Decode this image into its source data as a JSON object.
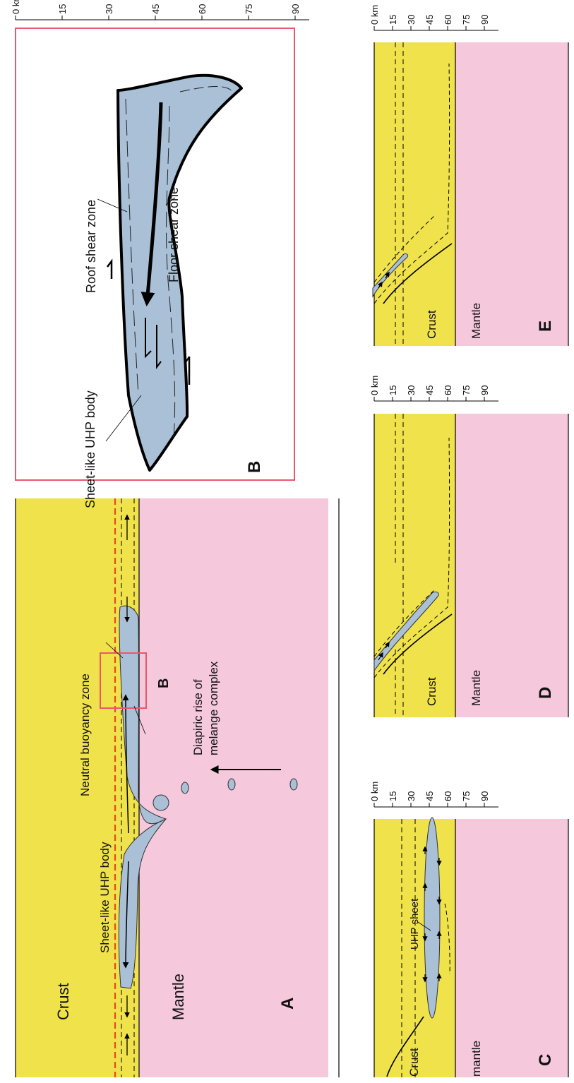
{
  "panel_a": {
    "letter": "A",
    "crust_label": "Crust",
    "mantle_label": "Mantle",
    "uhp_label": "Sheet-like UHP body",
    "buoyancy_label": "Neutral buoyancy zone",
    "diapir_label_1": "Diapiric rise of",
    "diapir_label_2": "melange complex",
    "inset_letter": "B"
  },
  "panel_b": {
    "letter": "B",
    "roof_label": "Roof shear zone",
    "floor_label": "Floor shear zone",
    "body_label": "Sheet-like UHP body"
  },
  "panel_c": {
    "letter": "C",
    "crust_label": "Crust",
    "mantle_label": "mantle",
    "sheet_label": "UHP sheet"
  },
  "panel_d": {
    "letter": "D",
    "crust_label": "Crust",
    "mantle_label": "Mantle"
  },
  "panel_e": {
    "letter": "E",
    "crust_label": "Crust",
    "mantle_label": "Mantle"
  },
  "depth_ticks": [
    "0",
    "15",
    "30",
    "45",
    "60",
    "75",
    "90"
  ],
  "depth_unit": "km",
  "colors": {
    "crust": "#f0e24b",
    "mantle": "#f5c8dc",
    "uhp": "#a9c0d6",
    "buoyancy_line": "#e84a1c",
    "frame": "#e8586c"
  }
}
